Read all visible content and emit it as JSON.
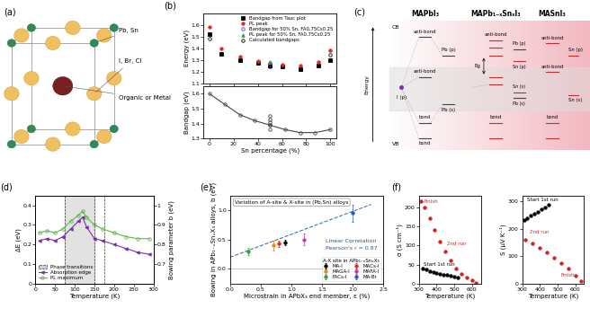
{
  "panel_a": {
    "title": "(a)",
    "labels": [
      "Pb, Sn",
      "I, Br, Cl",
      "Organic or Metal"
    ]
  },
  "panel_c": {
    "title": "(c)",
    "columns": [
      "MAPbI₃",
      "MAPb₁₋ₓSnₓI₃",
      "MASnI₃"
    ],
    "CB": "CB",
    "VB": "VB",
    "energy": "Energy",
    "gap": "Eg",
    "I": "I (p)",
    "Pb_p": "Pb (p)",
    "Pb_s": "Pb (s)",
    "Sn_p": "Sn (p)",
    "Sn_s": "Sn (s)",
    "antibond": "anti-bond",
    "bond": "bond"
  },
  "chart_data": [
    {
      "title": "(b)",
      "type": "scatter",
      "ylabel": "Energy (eV)",
      "xlim": [
        -5,
        105
      ],
      "xticks": [
        0,
        20,
        40,
        60,
        80,
        100
      ],
      "tick_labels": "y",
      "ylim": [
        1.1,
        1.7
      ],
      "yticks": [
        1.1,
        1.2,
        1.3,
        1.4,
        1.5,
        1.6
      ],
      "legend": "upper right",
      "series": [
        {
          "name": "Bandgap from Tauc plot",
          "color": "#000000",
          "marker": "square",
          "x": [
            0,
            10,
            25,
            40,
            50,
            60,
            75,
            90,
            100
          ],
          "values": [
            1.52,
            1.35,
            1.3,
            1.27,
            1.25,
            1.24,
            1.22,
            1.25,
            1.3
          ]
        },
        {
          "name": "PL peak",
          "color": "#e8231f",
          "marker": "circle",
          "x": [
            0,
            10,
            25,
            40,
            50,
            60,
            75,
            90,
            100
          ],
          "values": [
            1.58,
            1.4,
            1.33,
            1.29,
            1.27,
            1.26,
            1.25,
            1.28,
            1.38
          ]
        },
        {
          "name": "Bandgap for 50% Sn, FA0.75Cs0.25",
          "color": "#3050d0",
          "marker": "open_circle",
          "x": [
            50
          ],
          "values": [
            1.26
          ]
        },
        {
          "name": "PL peak for 50% Sn, FA0.75Cs0.25",
          "color": "#2e9e3e",
          "marker": "triangle",
          "x": [
            50
          ],
          "values": [
            1.28
          ]
        },
        {
          "name": "Calculated bandgaps",
          "color": "#000000",
          "marker": "open_circle",
          "x": [
            0,
            25,
            50,
            75,
            100
          ],
          "values": [
            1.48,
            1.3,
            1.24,
            1.22,
            1.34
          ]
        }
      ]
    },
    {
      "type": "line",
      "ylabel": "Bandgap (eV)",
      "xlabel": "Sn percentage (%)",
      "xlim": [
        -5,
        105
      ],
      "xticks": [
        0,
        20,
        40,
        60,
        80,
        100
      ],
      "ylim": [
        1.3,
        1.65
      ],
      "yticks": [
        1.3,
        1.4,
        1.5,
        1.6
      ],
      "series": [
        {
          "type": "line",
          "color": "#444444",
          "marker": "open_circle",
          "x": [
            0,
            12.5,
            25,
            37.5,
            50,
            62.5,
            75,
            87.5,
            100
          ],
          "values": [
            1.6,
            1.53,
            1.46,
            1.42,
            1.39,
            1.36,
            1.34,
            1.34,
            1.36
          ]
        },
        {
          "type": "scatter",
          "color": "#444444",
          "marker": "open_circle",
          "x": [
            50,
            50,
            50,
            50,
            50
          ],
          "values": [
            1.36,
            1.39,
            1.41,
            1.43,
            1.45
          ]
        }
      ]
    },
    {
      "title": "(d)",
      "type": "line",
      "xlabel": "Temperature (K)",
      "ylabel": "ΔE (eV)",
      "y2label": "Bowing parameter b (eV)",
      "xlim": [
        0,
        300
      ],
      "xticks": [
        0,
        50,
        100,
        150,
        200,
        250,
        300
      ],
      "ylim": [
        0,
        0.45
      ],
      "yticks": [
        0,
        0.1,
        0.2,
        0.3,
        0.4
      ],
      "y2lim": [
        0.6,
        1.05
      ],
      "y2ticks": [
        0.7,
        0.8,
        0.9,
        1
      ],
      "legend": "lower left",
      "phase_transitions": {
        "name": "Phase transitions",
        "x": [
          75,
          150,
          175
        ]
      },
      "series": [
        {
          "name": "Absorption edge",
          "axis": "y2",
          "color": "#7b2fa8",
          "marker": "left_triangle",
          "line_style": "solid",
          "x": [
            10,
            30,
            50,
            70,
            90,
            110,
            120,
            130,
            150,
            170,
            200,
            230,
            260,
            290
          ],
          "values": [
            0.82,
            0.83,
            0.82,
            0.84,
            0.88,
            0.92,
            0.94,
            0.89,
            0.83,
            0.82,
            0.8,
            0.78,
            0.76,
            0.75
          ]
        },
        {
          "name": "PL maximum",
          "axis": "y2",
          "color": "#5fb84a",
          "marker": "open_circle",
          "line_style": "solid",
          "x": [
            10,
            30,
            50,
            70,
            90,
            110,
            120,
            130,
            150,
            170,
            200,
            230,
            260,
            290
          ],
          "values": [
            0.86,
            0.87,
            0.86,
            0.88,
            0.92,
            0.95,
            0.97,
            0.94,
            0.9,
            0.88,
            0.86,
            0.84,
            0.83,
            0.83
          ]
        }
      ]
    },
    {
      "title": "(e)",
      "type": "scatter",
      "xlabel": "Microstrain in APbX₃ end member, ε (%)",
      "ylabel": "Bowing in APb₁₋ₓSnₓX₃ alloys, b (eV)",
      "xlim": [
        0,
        2.5
      ],
      "xticks": [
        {
          "value": 0,
          "label": "0.0"
        },
        {
          "value": 0.5,
          "label": "0.5"
        },
        {
          "value": 1,
          "label": "1.0"
        },
        {
          "value": 1.5,
          "label": "1.5"
        },
        {
          "value": 2,
          "label": "2.0"
        },
        {
          "value": 2.5,
          "label": "2.5"
        }
      ],
      "ylim": [
        -0.25,
        1.25
      ],
      "yticks": [
        {
          "value": 0,
          "label": "0.0"
        },
        {
          "value": 0.5,
          "label": "0.5"
        },
        {
          "value": 1,
          "label": "1.0"
        }
      ],
      "legend": "lower right",
      "legend_title": "A-X site in APb₁₋ₓSnₓX₃",
      "annotations": [
        "Variation of A-site & X-site in (Pb,Sn) alloys",
        "Linear Correlation",
        "Pearson's r = 0.87"
      ],
      "series": [
        {
          "name": "MA-I",
          "color": "#000000",
          "marker": "circle",
          "x": [
            0.9
          ],
          "values": [
            0.45
          ],
          "error": [
            0.05
          ]
        },
        {
          "name": "MAGA-I",
          "color": "#e08a1e",
          "marker": "circle",
          "x": [
            0.7
          ],
          "values": [
            0.4
          ],
          "error": [
            0.08
          ]
        },
        {
          "name": "FACs-I",
          "color": "#2e9e3e",
          "marker": "circle",
          "x": [
            0.3
          ],
          "values": [
            0.3
          ],
          "error": [
            0.06
          ]
        },
        {
          "name": "MACs-I",
          "color": "#e8231f",
          "marker": "circle",
          "x": [
            0.8
          ],
          "values": [
            0.43
          ],
          "error": [
            0.05
          ]
        },
        {
          "name": "MAFA-I",
          "color": "#c03ab0",
          "marker": "circle",
          "x": [
            1.2
          ],
          "values": [
            0.5
          ],
          "error": [
            0.1
          ]
        },
        {
          "name": "MA-Br",
          "color": "#3050d0",
          "marker": "circle",
          "x": [
            2.0
          ],
          "values": [
            0.95
          ],
          "error": [
            0.15
          ]
        },
        {
          "type": "line",
          "color": "#4477aa",
          "line_style": "dashed",
          "x": [
            0,
            2.3
          ],
          "values": [
            0.2,
            1.1
          ]
        }
      ]
    },
    {
      "title": "(f)",
      "type": "scatter",
      "xlabel": "Temperature (K)",
      "ylabel": "σ (S cm⁻¹)",
      "xlim": [
        300,
        650
      ],
      "xticks": [
        300,
        400,
        500,
        600
      ],
      "ylim": [
        0,
        230
      ],
      "yticks": [
        0,
        50,
        100,
        150,
        200
      ],
      "annotations": [
        "Finish",
        "2nd run",
        "Start 1st run"
      ],
      "series": [
        {
          "color": "#000000",
          "marker": "circle",
          "x": [
            320,
            340,
            360,
            380,
            400,
            420,
            440,
            460,
            480,
            500,
            520
          ],
          "values": [
            40,
            36,
            33,
            30,
            28,
            26,
            24,
            22,
            20,
            18,
            16
          ]
        },
        {
          "color": "#d62020",
          "marker": "circle",
          "x": [
            620,
            600,
            570,
            540,
            510,
            480,
            450,
            420,
            390,
            360,
            330,
            310
          ],
          "values": [
            3,
            8,
            15,
            25,
            40,
            60,
            85,
            110,
            140,
            170,
            200,
            215
          ]
        }
      ]
    },
    {
      "type": "scatter",
      "xlabel": "Temperature (K)",
      "ylabel": "S (μV K⁻¹)",
      "xlim": [
        300,
        650
      ],
      "xticks": [
        300,
        400,
        500,
        600
      ],
      "ylim": [
        0,
        320
      ],
      "yticks": [
        0,
        100,
        200,
        300
      ],
      "annotations": [
        "Start 1st run",
        "2nd run",
        "Finish"
      ],
      "series": [
        {
          "color": "#000000",
          "marker": "circle",
          "x": [
            310,
            330,
            350,
            370,
            390,
            410,
            430,
            450
          ],
          "values": [
            230,
            238,
            246,
            254,
            262,
            270,
            278,
            286
          ]
        },
        {
          "color": "#d62020",
          "marker": "circle",
          "x": [
            320,
            360,
            400,
            440,
            480,
            520,
            560,
            600,
            630
          ],
          "values": [
            160,
            145,
            130,
            115,
            95,
            75,
            55,
            30,
            10
          ]
        }
      ]
    }
  ]
}
